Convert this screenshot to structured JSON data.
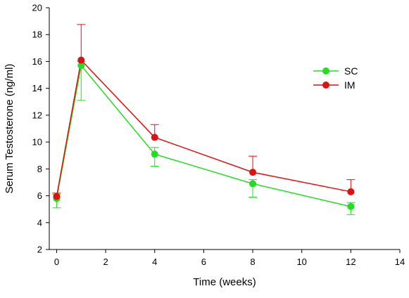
{
  "chart_data": {
    "type": "line",
    "title": "",
    "xlabel": "Time (weeks)",
    "ylabel": "Serum Testosterone (ng/ml)",
    "xlim": [
      -0.3,
      14
    ],
    "ylim": [
      2,
      20
    ],
    "xticks": [
      0,
      2,
      4,
      6,
      8,
      10,
      12,
      14
    ],
    "yticks": [
      2,
      4,
      6,
      8,
      10,
      12,
      14,
      16,
      18,
      20
    ],
    "grid": false,
    "legend": "top-right",
    "series": [
      {
        "name": "SC",
        "color": "#22dd22",
        "x": [
          0,
          1,
          4,
          8,
          12
        ],
        "y": [
          5.8,
          15.7,
          9.1,
          6.9,
          5.2
        ],
        "err_low": [
          0.7,
          2.6,
          0.9,
          1.0,
          0.6
        ],
        "err_high": [
          0.3,
          0.3,
          0.5,
          0.3,
          0.3
        ],
        "err_side": [
          "low",
          "low",
          "low",
          "low",
          "low"
        ]
      },
      {
        "name": "IM",
        "color": "#dd1111",
        "x": [
          0,
          1,
          4,
          8,
          12
        ],
        "y": [
          5.95,
          16.1,
          10.35,
          7.75,
          6.3
        ],
        "err_low": [
          0.0,
          0.0,
          0.0,
          0.0,
          0.0
        ],
        "err_high": [
          0.25,
          2.65,
          0.95,
          1.2,
          0.9
        ],
        "err_side": [
          "high",
          "high",
          "high",
          "high",
          "high"
        ]
      }
    ]
  }
}
